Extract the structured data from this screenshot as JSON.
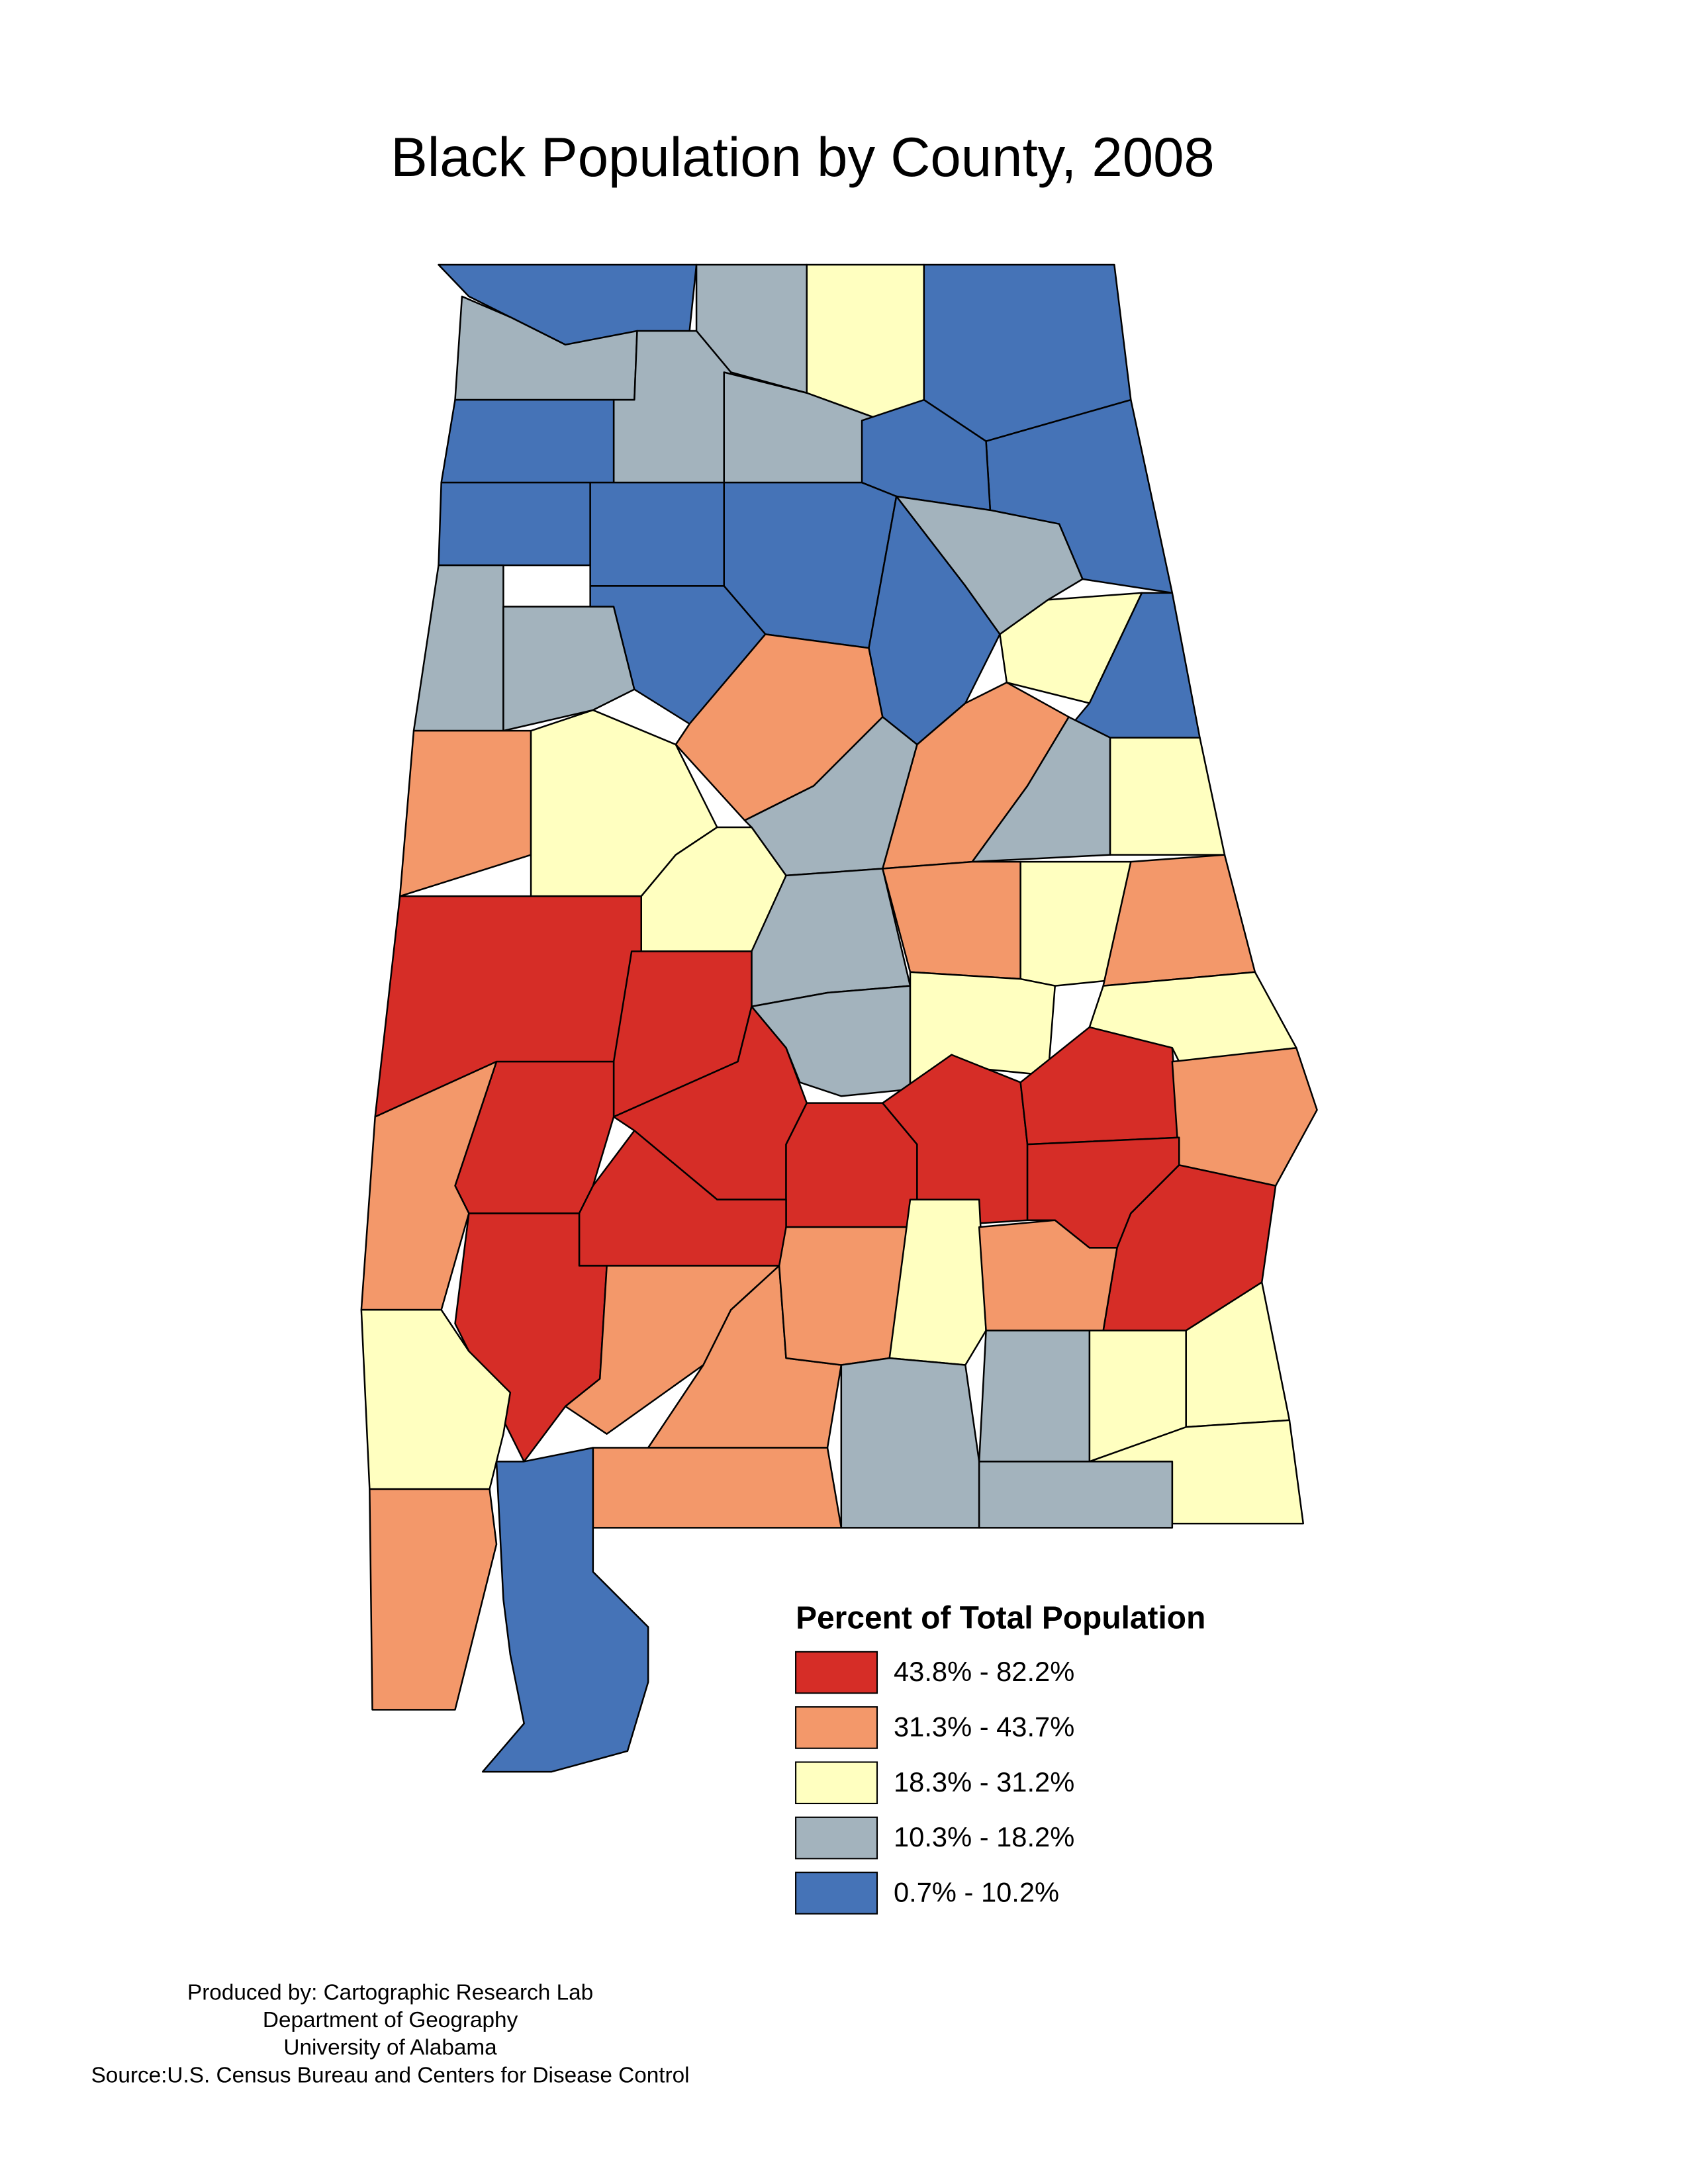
{
  "title": "Black Population by County, 2008",
  "legend": {
    "title": "Percent of Total Population",
    "items": [
      {
        "label": "43.8% - 82.2%",
        "color": "#d62d27"
      },
      {
        "label": "31.3% - 43.7%",
        "color": "#f3986a"
      },
      {
        "label": "18.3% - 31.2%",
        "color": "#ffffc0"
      },
      {
        "label": "10.3% - 18.2%",
        "color": "#a3b3bd"
      },
      {
        "label": "0.7% - 10.2%",
        "color": "#4573b7"
      }
    ]
  },
  "credits": [
    "Produced by: Cartographic Research Lab",
    "Department of Geography",
    "University of Alabama",
    "Source:U.S. Census Bureau and Centers for Disease Control"
  ]
}
